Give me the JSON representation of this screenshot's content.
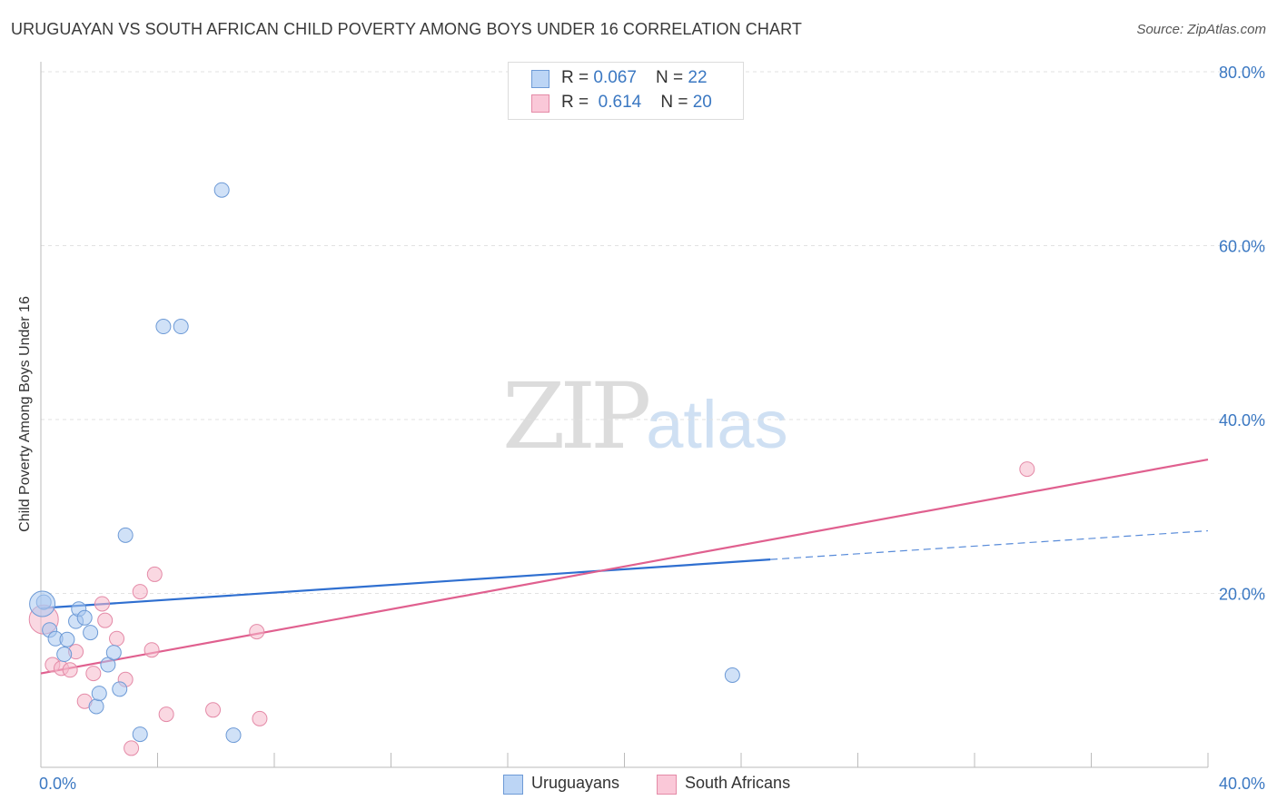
{
  "title": "URUGUAYAN VS SOUTH AFRICAN CHILD POVERTY AMONG BOYS UNDER 16 CORRELATION CHART",
  "source": "Source: ZipAtlas.com",
  "watermark": {
    "zip": "ZIP",
    "atlas": "atlas"
  },
  "legend": {
    "rows": [
      {
        "r_label": "R = ",
        "r_value": "0.067",
        "n_label": "N = ",
        "n_value": "22"
      },
      {
        "r_label": "R = ",
        "r_value": "0.614",
        "n_label": "N = ",
        "n_value": "20"
      }
    ]
  },
  "chart_data": {
    "type": "scatter",
    "title": "URUGUAYAN VS SOUTH AFRICAN CHILD POVERTY AMONG BOYS UNDER 16 CORRELATION CHART",
    "xlabel": "",
    "ylabel": "Child Poverty Among Boys Under 16",
    "xlim": [
      0,
      40
    ],
    "ylim": [
      0,
      80
    ],
    "x_tick_labels": [
      "0.0%",
      "40.0%"
    ],
    "y_tick_labels": [
      "80.0%",
      "60.0%",
      "40.0%",
      "20.0%"
    ],
    "y_tick_values": [
      80,
      60,
      40,
      20
    ],
    "grid": true,
    "colors": {
      "uruguayans_fill": "#a9c8f0",
      "uruguayans_stroke": "#6d9ad6",
      "uruguayans_line": "#2f6fd0",
      "south_africans_fill": "#f6b8cb",
      "south_africans_stroke": "#e48aa7",
      "south_africans_line": "#e0608f",
      "axis_text": "#3b78c2",
      "grid": "#e2e2e2"
    },
    "series": [
      {
        "name": "Uruguayans",
        "points": [
          [
            0.1,
            19.0
          ],
          [
            0.3,
            15.8
          ],
          [
            0.5,
            14.8
          ],
          [
            0.8,
            13.0
          ],
          [
            0.9,
            14.7
          ],
          [
            1.2,
            16.8
          ],
          [
            1.3,
            18.2
          ],
          [
            1.5,
            17.2
          ],
          [
            1.7,
            15.5
          ],
          [
            1.9,
            7.0
          ],
          [
            2.0,
            8.5
          ],
          [
            2.3,
            11.8
          ],
          [
            2.5,
            13.2
          ],
          [
            2.7,
            9.0
          ],
          [
            2.9,
            26.7
          ],
          [
            3.4,
            3.8
          ],
          [
            4.2,
            50.7
          ],
          [
            4.8,
            50.7
          ],
          [
            6.2,
            66.4
          ],
          [
            6.6,
            3.7
          ],
          [
            23.7,
            10.6
          ],
          [
            0.05,
            18.8
          ]
        ],
        "trend": {
          "x": [
            0,
            25
          ],
          "y": [
            18.3,
            23.9
          ]
        },
        "trend_dashed": {
          "x": [
            25,
            40
          ],
          "y": [
            23.9,
            27.2
          ]
        }
      },
      {
        "name": "South Africans",
        "points": [
          [
            0.1,
            17.0
          ],
          [
            0.4,
            11.8
          ],
          [
            0.7,
            11.4
          ],
          [
            1.0,
            11.2
          ],
          [
            1.2,
            13.3
          ],
          [
            1.5,
            7.6
          ],
          [
            1.8,
            10.8
          ],
          [
            2.1,
            18.8
          ],
          [
            2.2,
            16.9
          ],
          [
            2.6,
            14.8
          ],
          [
            2.9,
            10.1
          ],
          [
            3.1,
            2.2
          ],
          [
            3.4,
            20.2
          ],
          [
            3.8,
            13.5
          ],
          [
            3.9,
            22.2
          ],
          [
            4.3,
            6.1
          ],
          [
            5.9,
            6.6
          ],
          [
            7.4,
            15.6
          ],
          [
            7.5,
            5.6
          ],
          [
            33.8,
            34.3
          ]
        ],
        "trend": {
          "x": [
            0,
            40
          ],
          "y": [
            10.8,
            35.4
          ]
        }
      }
    ]
  },
  "bottom_legend": [
    {
      "label": "Uruguayans"
    },
    {
      "label": "South Africans"
    }
  ]
}
